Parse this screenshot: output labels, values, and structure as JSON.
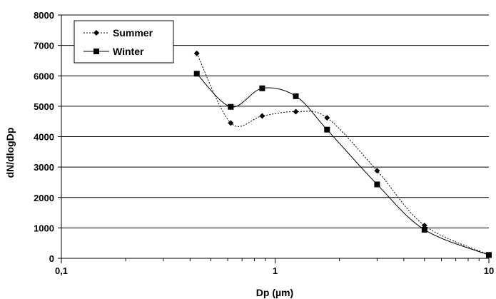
{
  "chart_data": {
    "type": "line",
    "xlabel": "Dp (µm)",
    "ylabel": "dN/dlogDp",
    "x_scale": "log",
    "xlim": [
      0.1,
      10
    ],
    "ylim": [
      0,
      8000
    ],
    "x_ticks": [
      0.1,
      1,
      10
    ],
    "x_tick_labels": [
      "0,1",
      "1",
      "10"
    ],
    "y_ticks": [
      0,
      1000,
      2000,
      3000,
      4000,
      5000,
      6000,
      7000,
      8000
    ],
    "y_tick_labels": [
      "0",
      "1000",
      "2000",
      "3000",
      "4000",
      "5000",
      "6000",
      "7000",
      "8000"
    ],
    "grid": "horizontal",
    "legend_position": "top-left",
    "series": [
      {
        "name": "Summer",
        "marker": "diamond",
        "line_style": "dotted",
        "color": "#000000",
        "x": [
          0.43,
          0.62,
          0.87,
          1.25,
          1.75,
          3.0,
          5.0,
          10.0
        ],
        "values": [
          6740,
          4450,
          4680,
          4820,
          4620,
          2880,
          1080,
          120
        ]
      },
      {
        "name": "Winter",
        "marker": "square",
        "line_style": "solid",
        "color": "#000000",
        "x": [
          0.43,
          0.62,
          0.87,
          1.25,
          1.75,
          3.0,
          5.0,
          10.0
        ],
        "values": [
          6070,
          4980,
          5590,
          5330,
          4230,
          2430,
          940,
          110
        ]
      }
    ]
  }
}
